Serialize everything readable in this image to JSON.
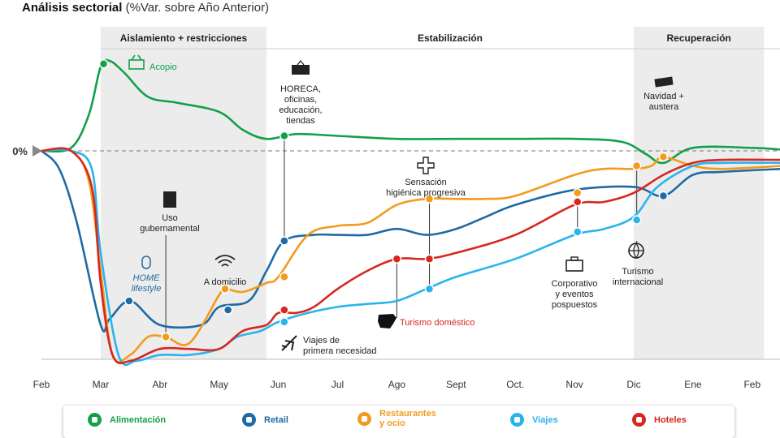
{
  "header": {
    "title": "Análisis sectorial",
    "subtitle": "(%Var. sobre Año Anterior)"
  },
  "colors": {
    "alimentacion": "#12a04a",
    "retail": "#1f6aa5",
    "restaurantes": "#f29b1e",
    "viajes": "#2ab4ec",
    "hoteles": "#d7271f",
    "band": "#ececec",
    "axis": "#bbbbbb"
  },
  "chart_data": {
    "type": "line",
    "months": [
      "Feb",
      "Mar",
      "Abr",
      "May",
      "Jun",
      "Jul",
      "Ago",
      "Sept",
      "Oct.",
      "Nov",
      "Dic",
      "Ene",
      "Feb"
    ],
    "zero_label": "0%",
    "phases": [
      {
        "label": "Aislamiento + restricciones",
        "start": 1,
        "end": 3.8,
        "shaded": true
      },
      {
        "label": "Estabilización",
        "start": 3.8,
        "end": 10,
        "shaded": false
      },
      {
        "label": "Recuperación",
        "start": 10,
        "end": 12.2,
        "shaded": true
      }
    ],
    "series": [
      {
        "key": "alimentacion",
        "name": "Alimentación",
        "points": [
          [
            0,
            0
          ],
          [
            0.5,
            0.5
          ],
          [
            0.8,
            6
          ],
          [
            1,
            14
          ],
          [
            1.15,
            15
          ],
          [
            1.4,
            13
          ],
          [
            1.8,
            9
          ],
          [
            2.3,
            8
          ],
          [
            3,
            6.5
          ],
          [
            3.4,
            3.5
          ],
          [
            3.8,
            2
          ],
          [
            4.3,
            2.8
          ],
          [
            5,
            2.5
          ],
          [
            6,
            2
          ],
          [
            7,
            2
          ],
          [
            8,
            2
          ],
          [
            9,
            2
          ],
          [
            9.8,
            1.5
          ],
          [
            10.2,
            -0.5
          ],
          [
            10.5,
            -2
          ],
          [
            11,
            0.5
          ],
          [
            12,
            0.5
          ],
          [
            12.5,
            0.2
          ]
        ],
        "markers": [
          [
            1.05,
            14.5
          ],
          [
            4.1,
            2.5
          ]
        ]
      },
      {
        "key": "retail",
        "name": "Retail",
        "points": [
          [
            0,
            0
          ],
          [
            0.3,
            -3
          ],
          [
            0.6,
            -12
          ],
          [
            1,
            -29
          ],
          [
            1.15,
            -28
          ],
          [
            1.5,
            -25
          ],
          [
            2,
            -29
          ],
          [
            2.7,
            -29
          ],
          [
            3,
            -26
          ],
          [
            3.5,
            -25
          ],
          [
            3.8,
            -20
          ],
          [
            4.1,
            -15
          ],
          [
            4.6,
            -14
          ],
          [
            5,
            -14
          ],
          [
            5.5,
            -14
          ],
          [
            6,
            -13
          ],
          [
            6.5,
            -14
          ],
          [
            7,
            -13
          ],
          [
            7.5,
            -11
          ],
          [
            8,
            -9
          ],
          [
            9,
            -6.5
          ],
          [
            10,
            -6
          ],
          [
            10.5,
            -7.5
          ],
          [
            11,
            -4
          ],
          [
            11.5,
            -3.5
          ],
          [
            12.5,
            -3
          ]
        ],
        "markers": [
          [
            1.48,
            -25
          ],
          [
            3.15,
            -26.5
          ],
          [
            4.1,
            -15
          ],
          [
            10.5,
            -7.5
          ]
        ]
      },
      {
        "key": "restaurantes",
        "name": "Restaurantes y ocio",
        "points": [
          [
            0,
            0
          ],
          [
            0.5,
            0
          ],
          [
            0.8,
            -5
          ],
          [
            1,
            -20
          ],
          [
            1.2,
            -34
          ],
          [
            1.5,
            -34
          ],
          [
            1.8,
            -31
          ],
          [
            2.1,
            -31
          ],
          [
            2.5,
            -32
          ],
          [
            3,
            -24
          ],
          [
            3.1,
            -23
          ],
          [
            3.4,
            -23.5
          ],
          [
            3.8,
            -22
          ],
          [
            4,
            -21
          ],
          [
            4.5,
            -14
          ],
          [
            5,
            -12.5
          ],
          [
            5.5,
            -12
          ],
          [
            6,
            -9
          ],
          [
            6.5,
            -8
          ],
          [
            7,
            -8
          ],
          [
            7.5,
            -8
          ],
          [
            8,
            -7.5
          ],
          [
            9,
            -4
          ],
          [
            9.5,
            -3
          ],
          [
            10,
            -3
          ],
          [
            10.3,
            -2.5
          ],
          [
            10.5,
            -1
          ],
          [
            11,
            -2.5
          ],
          [
            11.5,
            -3
          ],
          [
            12.5,
            -2.5
          ]
        ],
        "markers": [
          [
            2.1,
            -31
          ],
          [
            3.1,
            -23
          ],
          [
            4.1,
            -21
          ],
          [
            6.55,
            -8
          ],
          [
            9.05,
            -7
          ],
          [
            10.05,
            -2.5
          ],
          [
            10.5,
            -1
          ]
        ]
      },
      {
        "key": "viajes",
        "name": "Viajes",
        "points": [
          [
            0,
            0
          ],
          [
            0.5,
            0
          ],
          [
            0.85,
            -3
          ],
          [
            1,
            -17
          ],
          [
            1.3,
            -34
          ],
          [
            1.6,
            -35
          ],
          [
            2,
            -34
          ],
          [
            2.5,
            -34
          ],
          [
            3,
            -33
          ],
          [
            3.3,
            -31
          ],
          [
            3.7,
            -30
          ],
          [
            4,
            -28.5
          ],
          [
            4.5,
            -27
          ],
          [
            5,
            -26
          ],
          [
            5.5,
            -25.5
          ],
          [
            6,
            -25
          ],
          [
            6.5,
            -23
          ],
          [
            7,
            -21
          ],
          [
            8,
            -18
          ],
          [
            9,
            -14
          ],
          [
            9.5,
            -13
          ],
          [
            10,
            -11
          ],
          [
            10.4,
            -6
          ],
          [
            11,
            -2.5
          ],
          [
            11.5,
            -2
          ],
          [
            12.5,
            -2
          ]
        ],
        "markers": [
          [
            4.1,
            -28.5
          ],
          [
            6.55,
            -23
          ],
          [
            9.05,
            -13.5
          ],
          [
            10.05,
            -11.5
          ]
        ]
      },
      {
        "key": "hoteles",
        "name": "Hoteles",
        "points": [
          [
            0,
            0
          ],
          [
            0.5,
            0
          ],
          [
            0.85,
            -6
          ],
          [
            1,
            -22
          ],
          [
            1.2,
            -34
          ],
          [
            1.5,
            -35
          ],
          [
            2,
            -33
          ],
          [
            2.5,
            -33
          ],
          [
            3,
            -33
          ],
          [
            3.4,
            -30
          ],
          [
            3.8,
            -29
          ],
          [
            4,
            -27
          ],
          [
            4.3,
            -27
          ],
          [
            4.6,
            -26
          ],
          [
            5,
            -23
          ],
          [
            5.5,
            -20
          ],
          [
            6,
            -18
          ],
          [
            6.5,
            -18
          ],
          [
            7,
            -17
          ],
          [
            8,
            -14
          ],
          [
            9,
            -9
          ],
          [
            9.5,
            -8.5
          ],
          [
            10,
            -7
          ],
          [
            10.5,
            -4
          ],
          [
            11,
            -2
          ],
          [
            11.5,
            -1.5
          ],
          [
            12.5,
            -1.5
          ]
        ],
        "markers": [
          [
            4.1,
            -26.5
          ],
          [
            6.0,
            -18
          ],
          [
            6.55,
            -18
          ],
          [
            9.05,
            -8.5
          ]
        ]
      }
    ],
    "annotations": [
      {
        "id": "acopio",
        "lines": [
          "Acopio"
        ],
        "icon": "basket-icon",
        "color": "#12a04a"
      },
      {
        "id": "horeca",
        "lines": [
          "HORECA,",
          "oficinas,",
          "educación,",
          "tiendas"
        ],
        "icon": "open-sign-icon"
      },
      {
        "id": "uso",
        "lines": [
          "Uso",
          "gubernamental"
        ],
        "icon": "building-icon"
      },
      {
        "id": "home",
        "lines": [
          "HOME",
          "lifestyle"
        ],
        "icon": "mouse-icon",
        "color": "#1f6aa5"
      },
      {
        "id": "domicilio",
        "lines": [
          "A domicilio"
        ],
        "icon": "wifi-icon"
      },
      {
        "id": "sensacion",
        "lines": [
          "Sensación",
          "higiénica progresiva"
        ],
        "icon": "hygiene-icon"
      },
      {
        "id": "turismo_dom",
        "lines": [
          "Turismo doméstico"
        ],
        "icon": "spain-map-icon",
        "color": "#d7271f"
      },
      {
        "id": "viajes_prim",
        "lines": [
          "Viajes de",
          "primera necesidad"
        ],
        "icon": "plane-icon"
      },
      {
        "id": "corporativo",
        "lines": [
          "Corporativo",
          "y eventos",
          "pospuestos"
        ],
        "icon": "briefcase-icon"
      },
      {
        "id": "turismo_int",
        "lines": [
          "Turismo",
          "internacional"
        ],
        "icon": "globe-icon"
      },
      {
        "id": "navidad",
        "lines": [
          "Navidad +",
          "austera"
        ],
        "icon": "money-icon"
      }
    ]
  },
  "legend": [
    {
      "key": "alimentacion",
      "lines": [
        "Alimentación"
      ],
      "icon": "apple-icon"
    },
    {
      "key": "retail",
      "lines": [
        "Retail"
      ],
      "icon": "cart-icon"
    },
    {
      "key": "restaurantes",
      "lines": [
        "Restaurantes",
        "y ocio"
      ],
      "icon": "cutlery-icon"
    },
    {
      "key": "viajes",
      "lines": [
        "Viajes"
      ],
      "icon": "plane-icon"
    },
    {
      "key": "hoteles",
      "lines": [
        "Hoteles"
      ],
      "icon": "bed-icon"
    }
  ]
}
